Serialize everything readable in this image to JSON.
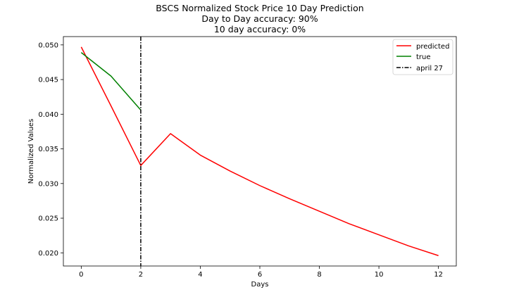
{
  "chart_data": {
    "type": "line",
    "title": "BSCS Normalized Stock Price 10 Day Prediction",
    "subtitle_lines": [
      "Day to Day accuracy: 90%",
      "10 day accuracy: 0%"
    ],
    "xlabel": "Days",
    "ylabel": "Normalized Values",
    "xlim": [
      -0.6,
      12.6
    ],
    "ylim": [
      0.0181,
      0.0512
    ],
    "x_ticks": [
      0,
      2,
      4,
      6,
      8,
      10,
      12
    ],
    "y_ticks": [
      0.02,
      0.025,
      0.03,
      0.035,
      0.04,
      0.045,
      0.05
    ],
    "y_tick_labels": [
      "0.020",
      "0.025",
      "0.030",
      "0.035",
      "0.040",
      "0.045",
      "0.050"
    ],
    "grid": false,
    "legend_position": "top-right",
    "series": [
      {
        "name": "predicted",
        "color": "#ff0000",
        "style": "solid",
        "x": [
          0,
          1,
          2,
          3,
          4,
          5,
          6,
          7,
          8,
          9,
          10,
          11,
          12
        ],
        "values": [
          0.0497,
          0.0412,
          0.0326,
          0.0372,
          0.0341,
          0.0318,
          0.0297,
          0.0278,
          0.026,
          0.0242,
          0.0226,
          0.021,
          0.0196
        ]
      },
      {
        "name": "true",
        "color": "#008000",
        "style": "solid",
        "x": [
          0,
          1,
          2
        ],
        "values": [
          0.0489,
          0.0455,
          0.0406
        ]
      }
    ],
    "vline": {
      "name": "april 27",
      "x": 2,
      "color": "#000000",
      "style": "dashdot"
    }
  }
}
